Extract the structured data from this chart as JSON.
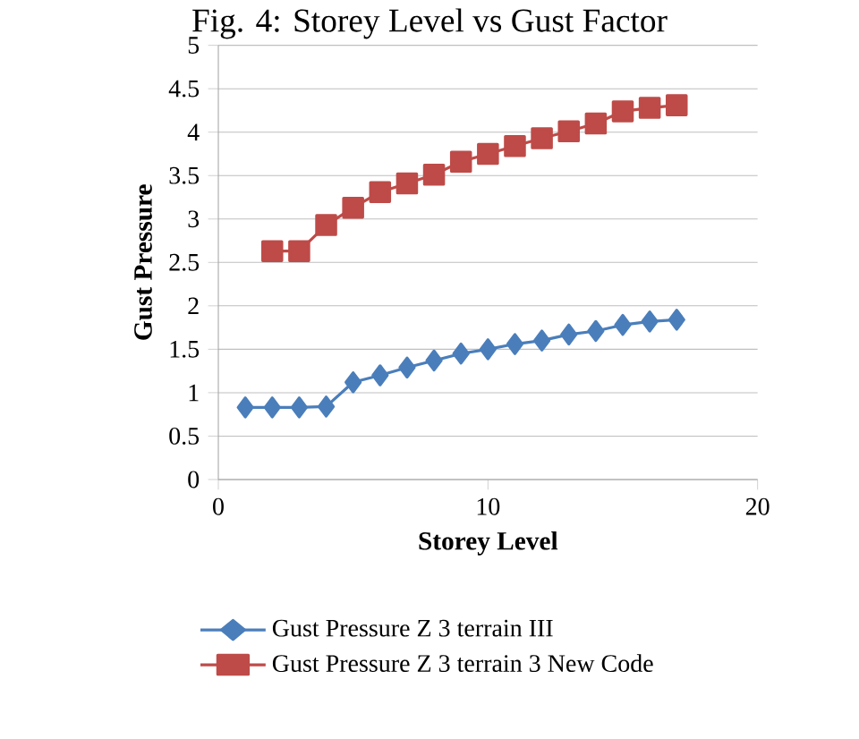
{
  "chart_data": {
    "type": "line",
    "title": "Fig. 4: Storey Level vs Gust Factor",
    "xlabel": "Storey Level",
    "ylabel": "Gust Pressure",
    "xlim": [
      0,
      20
    ],
    "xticks": [
      0,
      10,
      20
    ],
    "ylim": [
      0,
      5
    ],
    "yticks": [
      0,
      0.5,
      1,
      1.5,
      2,
      2.5,
      3,
      3.5,
      4,
      4.5,
      5
    ],
    "grid": "y",
    "legend": "bottom",
    "series": [
      {
        "name": "Gust Pressure Z 3 terrain III",
        "color": "#4a7ebb",
        "marker": "diamond",
        "x": [
          1,
          2,
          3,
          4,
          5,
          6,
          7,
          8,
          9,
          10,
          11,
          12,
          13,
          14,
          15,
          16,
          17
        ],
        "values": [
          0.83,
          0.83,
          0.83,
          0.84,
          1.12,
          1.2,
          1.29,
          1.37,
          1.45,
          1.5,
          1.56,
          1.6,
          1.67,
          1.71,
          1.78,
          1.82,
          1.84
        ]
      },
      {
        "name": "Gust Pressure Z 3 terrain 3 New Code",
        "color": "#be4b48",
        "marker": "square",
        "x": [
          2,
          3,
          4,
          5,
          6,
          7,
          8,
          9,
          10,
          11,
          12,
          13,
          14,
          15,
          16,
          17
        ],
        "values": [
          2.63,
          2.63,
          2.93,
          3.13,
          3.31,
          3.41,
          3.51,
          3.66,
          3.75,
          3.84,
          3.93,
          4.01,
          4.1,
          4.24,
          4.28,
          4.31
        ]
      }
    ]
  }
}
